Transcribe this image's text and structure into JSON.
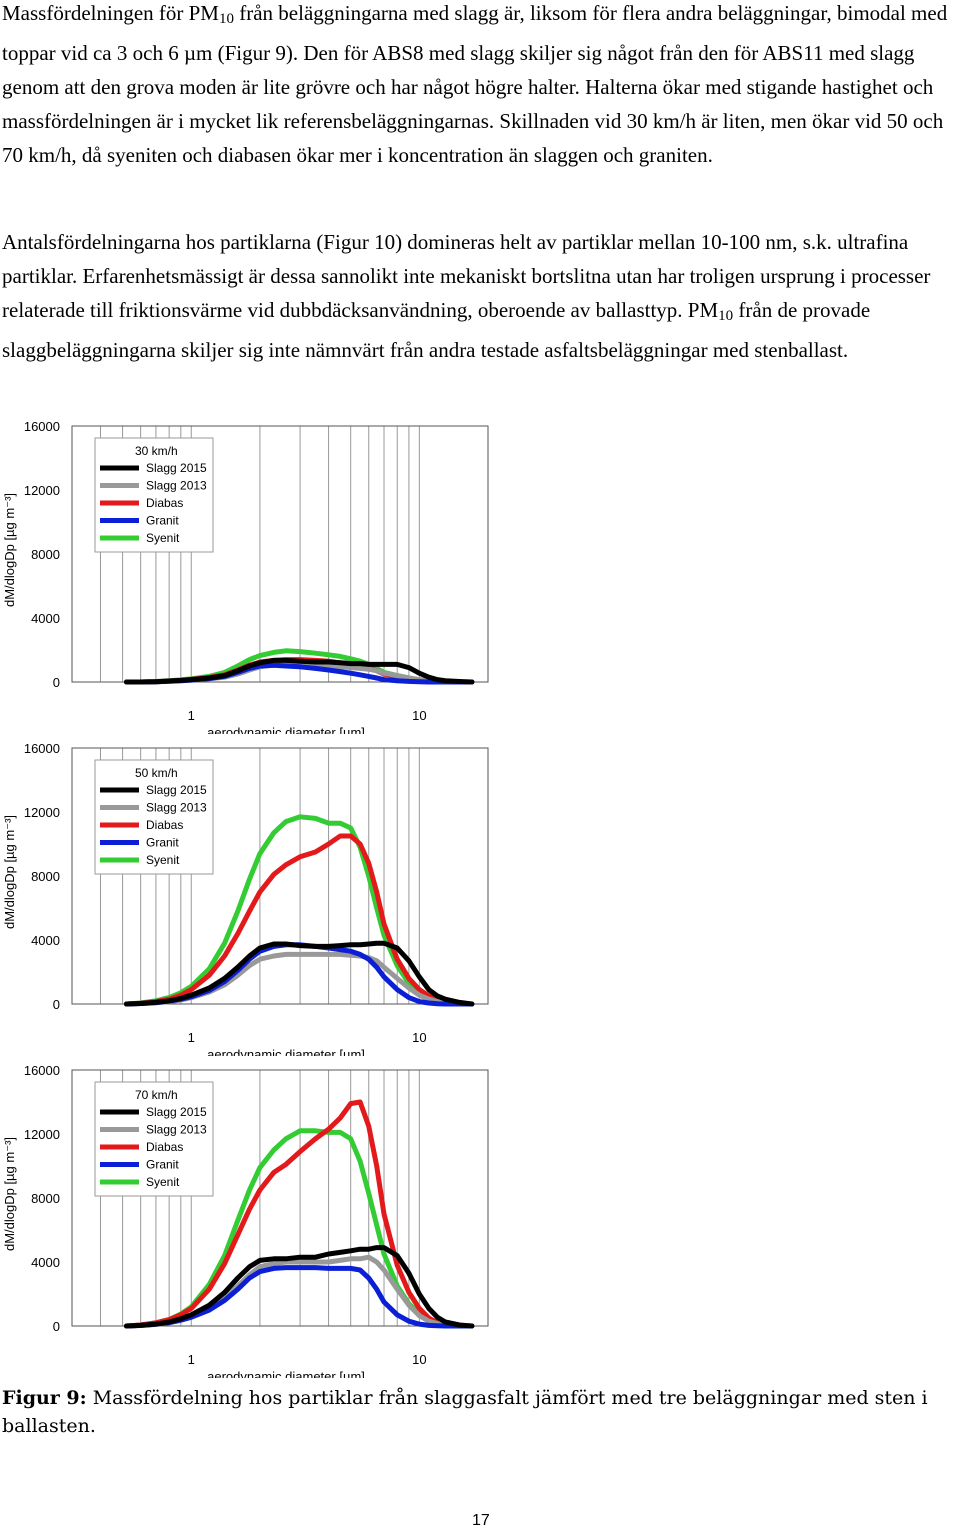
{
  "paragraphs": {
    "p1": [
      {
        "t": "Massfördelningen för PM"
      },
      {
        "sub": "10"
      },
      {
        "t": " från beläggningarna med slagg är, liksom för flera andra beläggningar, bimodal med toppar vid ca 3 och 6 µm (Figur 9). Den för ABS8 med slagg skiljer sig något från den för ABS11 med slagg genom att den grova moden är lite grövre och har något högre halter. Halterna ökar med stigande hastighet och massfördelningen är i mycket lik referensbeläggningarnas. Skillnaden vid 30 km/h är liten, men ökar vid 50 och 70 km/h, då syeniten och diabasen ökar mer i koncentration än slaggen och graniten."
      }
    ],
    "p2": [
      {
        "t": "Antalsfördelningarna hos partiklarna (Figur 10) domineras helt av partiklar mellan 10-100 nm, s.k. ultrafina partiklar. Erfarenhetsmässigt är dessa sannolikt inte mekaniskt bortslitna utan har troligen ursprung i processer relaterade till friktionsvärme vid dubbdäcksanvändning, oberoende av ballasttyp. PM"
      },
      {
        "sub": "10"
      },
      {
        "t": " från de provade slaggbeläggningarna skiljer sig inte nämnvärt från andra testade asfaltsbeläggningar med stenballast."
      }
    ]
  },
  "caption": {
    "label": "Figur 9:",
    "text": " Massfördelning hos partiklar från slaggasfalt jämfört med tre beläggningar med sten i ballasten."
  },
  "page_number": "17",
  "colors": {
    "Slagg 2015": "#000000",
    "Slagg 2013": "#999999",
    "Diabas": "#e31a1c",
    "Granit": "#0a1fd6",
    "Syenit": "#33cc33"
  },
  "chart_data": [
    {
      "type": "line",
      "title": "30 km/h",
      "xlabel": "aerodynamic diameter [µm]",
      "ylabel": "dM/dlogDp [µg m⁻³]",
      "xscale": "log",
      "xlim": [
        0.3,
        20
      ],
      "ylim": [
        0,
        16000
      ],
      "yticks": [
        0,
        4000,
        8000,
        12000,
        16000
      ],
      "xticks": [
        {
          "v": 1,
          "label": "1"
        },
        {
          "v": 10,
          "label": "10"
        }
      ],
      "grid": "vertical log gridlines",
      "legend_position": "top-left",
      "x": [
        0.52,
        0.6,
        0.7,
        0.8,
        0.9,
        1.0,
        1.2,
        1.4,
        1.6,
        1.8,
        2.0,
        2.3,
        2.6,
        3.0,
        3.5,
        4.0,
        4.5,
        5.0,
        5.5,
        6.0,
        6.5,
        7.0,
        8.0,
        9.0,
        10,
        11,
        12,
        13,
        15,
        17
      ],
      "series": [
        {
          "name": "Slagg 2015",
          "values": [
            0,
            0,
            20,
            60,
            100,
            150,
            250,
            400,
            700,
            1000,
            1200,
            1350,
            1350,
            1300,
            1250,
            1250,
            1200,
            1150,
            1150,
            1100,
            1100,
            1100,
            1100,
            900,
            550,
            300,
            150,
            80,
            30,
            0
          ]
        },
        {
          "name": "Slagg 2013",
          "values": [
            0,
            0,
            20,
            50,
            80,
            120,
            200,
            300,
            500,
            750,
            950,
            1050,
            1100,
            1100,
            1050,
            1000,
            950,
            900,
            850,
            800,
            700,
            550,
            400,
            250,
            150,
            80,
            40,
            20,
            0,
            0
          ]
        },
        {
          "name": "Diabas",
          "values": [
            0,
            0,
            20,
            60,
            100,
            160,
            280,
            450,
            750,
            1050,
            1250,
            1350,
            1400,
            1400,
            1350,
            1300,
            1200,
            1150,
            1000,
            900,
            700,
            500,
            350,
            200,
            100,
            50,
            20,
            0,
            0,
            0
          ]
        },
        {
          "name": "Granit",
          "values": [
            0,
            0,
            20,
            50,
            80,
            120,
            220,
            350,
            600,
            850,
            1000,
            1050,
            1000,
            950,
            850,
            750,
            650,
            550,
            450,
            350,
            250,
            150,
            80,
            40,
            20,
            0,
            0,
            0,
            0,
            0
          ]
        },
        {
          "name": "Syenit",
          "values": [
            0,
            0,
            30,
            80,
            130,
            200,
            350,
            600,
            1000,
            1400,
            1650,
            1850,
            1950,
            1900,
            1800,
            1700,
            1600,
            1450,
            1300,
            1100,
            850,
            600,
            400,
            250,
            130,
            60,
            20,
            0,
            0,
            0
          ]
        }
      ]
    },
    {
      "type": "line",
      "title": "50 km/h",
      "xlabel": "aerodynamic diameter [µm]",
      "ylabel": "dM/dlogDp [µg m⁻³]",
      "xscale": "log",
      "xlim": [
        0.3,
        20
      ],
      "ylim": [
        0,
        16000
      ],
      "yticks": [
        0,
        4000,
        8000,
        12000,
        16000
      ],
      "xticks": [
        {
          "v": 1,
          "label": "1"
        },
        {
          "v": 10,
          "label": "10"
        }
      ],
      "grid": "vertical log gridlines",
      "legend_position": "top-left",
      "x": [
        0.52,
        0.6,
        0.7,
        0.8,
        0.9,
        1.0,
        1.2,
        1.4,
        1.6,
        1.8,
        2.0,
        2.3,
        2.6,
        3.0,
        3.5,
        4.0,
        4.5,
        5.0,
        5.5,
        6.0,
        6.5,
        7.0,
        8.0,
        9.0,
        10,
        11,
        12,
        13,
        15,
        17
      ],
      "series": [
        {
          "name": "Slagg 2015",
          "values": [
            0,
            30,
            100,
            200,
            350,
            550,
            1000,
            1600,
            2300,
            3000,
            3500,
            3750,
            3750,
            3650,
            3600,
            3600,
            3650,
            3700,
            3700,
            3750,
            3800,
            3800,
            3500,
            2700,
            1700,
            900,
            500,
            300,
            100,
            0
          ]
        },
        {
          "name": "Slagg 2013",
          "values": [
            0,
            30,
            80,
            150,
            250,
            400,
            750,
            1200,
            1800,
            2400,
            2800,
            3000,
            3100,
            3100,
            3100,
            3100,
            3100,
            3050,
            3000,
            2900,
            2700,
            2300,
            1600,
            1000,
            550,
            300,
            150,
            80,
            20,
            0
          ]
        },
        {
          "name": "Diabas",
          "values": [
            0,
            50,
            150,
            300,
            550,
            900,
            1800,
            3000,
            4400,
            5800,
            7000,
            8100,
            8700,
            9200,
            9500,
            10000,
            10500,
            10500,
            10000,
            8800,
            7000,
            5000,
            2800,
            1600,
            900,
            500,
            250,
            120,
            30,
            0
          ]
        },
        {
          "name": "Granit",
          "values": [
            0,
            30,
            90,
            180,
            300,
            450,
            850,
            1400,
            2100,
            2800,
            3300,
            3600,
            3700,
            3700,
            3600,
            3500,
            3400,
            3300,
            3100,
            2800,
            2300,
            1700,
            900,
            400,
            150,
            60,
            20,
            0,
            0,
            0
          ]
        },
        {
          "name": "Syenit",
          "values": [
            0,
            60,
            200,
            400,
            700,
            1100,
            2200,
            3800,
            5800,
            7800,
            9400,
            10700,
            11400,
            11700,
            11600,
            11300,
            11300,
            11000,
            9800,
            8000,
            6000,
            4300,
            2400,
            1300,
            700,
            350,
            150,
            60,
            10,
            0
          ]
        }
      ]
    },
    {
      "type": "line",
      "title": "70 km/h",
      "xlabel": "aerodynamic diameter [µm]",
      "ylabel": "dM/dlogDp [µg m⁻³]",
      "xscale": "log",
      "xlim": [
        0.3,
        20
      ],
      "ylim": [
        0,
        16000
      ],
      "yticks": [
        0,
        4000,
        8000,
        12000,
        16000
      ],
      "xticks": [
        {
          "v": 1,
          "label": "1"
        },
        {
          "v": 10,
          "label": "10"
        }
      ],
      "grid": "vertical log gridlines",
      "legend_position": "top-left",
      "x": [
        0.52,
        0.6,
        0.7,
        0.8,
        0.9,
        1.0,
        1.2,
        1.4,
        1.6,
        1.8,
        2.0,
        2.3,
        2.6,
        3.0,
        3.5,
        4.0,
        4.5,
        5.0,
        5.5,
        6.0,
        6.5,
        7.0,
        8.0,
        9.0,
        10,
        11,
        12,
        13,
        15,
        17
      ],
      "series": [
        {
          "name": "Slagg 2015",
          "values": [
            0,
            40,
            120,
            250,
            450,
            700,
            1300,
            2100,
            3000,
            3700,
            4100,
            4200,
            4200,
            4300,
            4300,
            4500,
            4600,
            4700,
            4800,
            4800,
            4900,
            4900,
            4400,
            3300,
            2000,
            1100,
            550,
            250,
            60,
            0
          ]
        },
        {
          "name": "Slagg 2013",
          "values": [
            0,
            30,
            100,
            200,
            350,
            550,
            1000,
            1700,
            2500,
            3200,
            3700,
            3900,
            4000,
            4000,
            4000,
            4000,
            4100,
            4200,
            4200,
            4300,
            4000,
            3500,
            2300,
            1300,
            650,
            300,
            150,
            60,
            10,
            0
          ]
        },
        {
          "name": "Diabas",
          "values": [
            0,
            60,
            200,
            400,
            700,
            1100,
            2300,
            3900,
            5700,
            7300,
            8500,
            9600,
            10100,
            10900,
            11700,
            12300,
            13000,
            13900,
            14000,
            12500,
            10000,
            7000,
            3800,
            2100,
            1100,
            500,
            200,
            80,
            20,
            0
          ]
        },
        {
          "name": "Granit",
          "values": [
            0,
            40,
            110,
            220,
            370,
            550,
            1000,
            1600,
            2300,
            3000,
            3400,
            3600,
            3650,
            3650,
            3650,
            3600,
            3600,
            3600,
            3500,
            3000,
            2300,
            1500,
            700,
            300,
            120,
            40,
            10,
            0,
            0,
            0
          ]
        },
        {
          "name": "Syenit",
          "values": [
            0,
            60,
            200,
            400,
            750,
            1200,
            2600,
            4400,
            6600,
            8500,
            9900,
            11000,
            11700,
            12200,
            12200,
            12100,
            12100,
            11700,
            10300,
            8300,
            6300,
            4500,
            2500,
            1400,
            750,
            350,
            150,
            60,
            10,
            0
          ]
        }
      ]
    }
  ]
}
